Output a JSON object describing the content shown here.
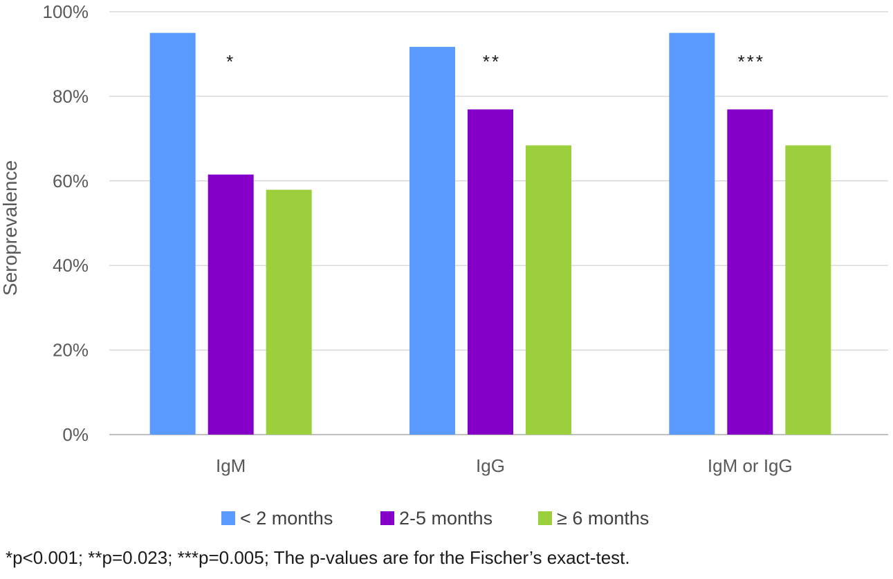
{
  "chart_data": {
    "type": "bar",
    "categories": [
      "IgM",
      "IgG",
      "IgM or IgG"
    ],
    "series": [
      {
        "name": "< 2 months",
        "values": [
          95,
          91.7,
          95
        ],
        "color": "#5b9bff"
      },
      {
        "name": "2-5 months",
        "values": [
          61.5,
          76.9,
          76.9
        ],
        "color": "#8400c8"
      },
      {
        "name": "≥ 6 months",
        "values": [
          57.9,
          68.4,
          68.4
        ],
        "color": "#9bcf3c"
      }
    ],
    "annotations": [
      "*",
      "**",
      "***"
    ],
    "ylabel": "Seroprevalence",
    "xlabel": "",
    "ylim": [
      0,
      100
    ],
    "yticks": [
      "0%",
      "20%",
      "40%",
      "60%",
      "80%",
      "100%"
    ],
    "grid": true,
    "legend_position": "bottom"
  },
  "footnote": "*p<0.001; **p=0.023; ***p=0.005; The p-values are for the Fischer’s exact-test."
}
